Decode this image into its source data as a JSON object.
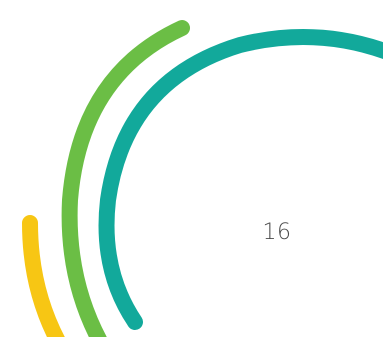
{
  "page": {
    "number": "16"
  },
  "decoration": {
    "colors": {
      "yellow": "#F7C614",
      "green": "#6BBE45",
      "teal": "#12A99B",
      "background": "#FFFFFF"
    }
  }
}
